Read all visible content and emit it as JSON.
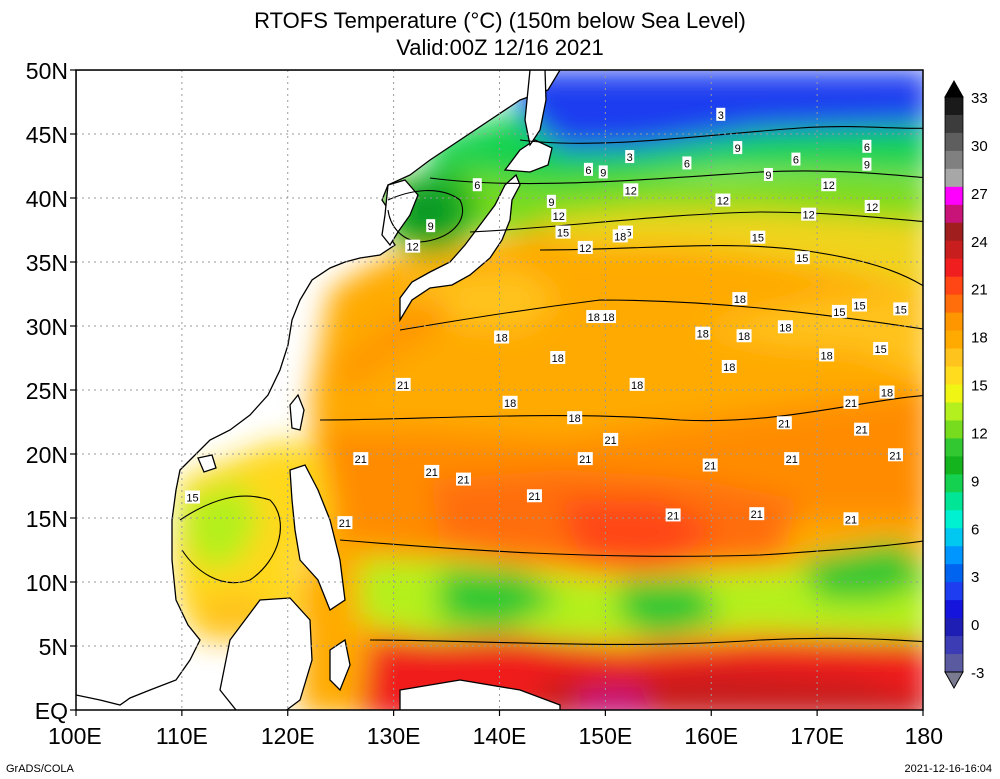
{
  "title_line1": "RTOFS Temperature (°C) (150m below Sea Level)",
  "title_line2": "Valid:00Z 12/16 2021",
  "lat_labels": [
    "50N",
    "45N",
    "40N",
    "35N",
    "30N",
    "25N",
    "20N",
    "15N",
    "10N",
    "5N",
    "EQ"
  ],
  "lon_labels": [
    "100E",
    "110E",
    "120E",
    "130E",
    "140E",
    "150E",
    "160E",
    "170E",
    "180"
  ],
  "colorbar": {
    "labels": [
      "33",
      "30",
      "27",
      "24",
      "21",
      "18",
      "15",
      "12",
      "9",
      "6",
      "3",
      "0",
      "-3"
    ],
    "colors": [
      "#1a1a1a",
      "#3c3c3c",
      "#5e5e5e",
      "#808080",
      "#a7a7a7",
      "#ff00ff",
      "#c81478",
      "#a01e1e",
      "#c81e1e",
      "#f01e1e",
      "#ff4614",
      "#ff6e0a",
      "#ff9600",
      "#ffaa00",
      "#ffc31e",
      "#ffdc1e",
      "#f0f514",
      "#b4f01e",
      "#78dc1e",
      "#32c832",
      "#14b41e",
      "#14d250",
      "#00e696",
      "#00f0d2",
      "#00c8f0",
      "#0096ff",
      "#0064f0",
      "#1e3cf0",
      "#1414dc",
      "#1e1eb4",
      "#3c3cb4",
      "#5a5aa0"
    ]
  },
  "contour_labels": [
    {
      "v": "3",
      "lon": 160.9,
      "lat": 46.5
    },
    {
      "v": "3",
      "lon": 152.3,
      "lat": 43.2
    },
    {
      "v": "6",
      "lon": 137.9,
      "lat": 41.0
    },
    {
      "v": "6",
      "lon": 148.4,
      "lat": 42.2
    },
    {
      "v": "6",
      "lon": 157.7,
      "lat": 42.7
    },
    {
      "v": "6",
      "lon": 168.0,
      "lat": 43.0
    },
    {
      "v": "6",
      "lon": 174.7,
      "lat": 44.0
    },
    {
      "v": "9",
      "lon": 149.8,
      "lat": 42.0
    },
    {
      "v": "9",
      "lon": 162.5,
      "lat": 43.9
    },
    {
      "v": "9",
      "lon": 165.4,
      "lat": 41.8
    },
    {
      "v": "9",
      "lon": 174.7,
      "lat": 42.6
    },
    {
      "v": "9",
      "lon": 144.9,
      "lat": 39.7
    },
    {
      "v": "9",
      "lon": 133.5,
      "lat": 37.8
    },
    {
      "v": "12",
      "lon": 152.4,
      "lat": 40.6
    },
    {
      "v": "12",
      "lon": 161.1,
      "lat": 39.8
    },
    {
      "v": "12",
      "lon": 171.1,
      "lat": 41.0
    },
    {
      "v": "12",
      "lon": 145.6,
      "lat": 38.6
    },
    {
      "v": "12",
      "lon": 169.2,
      "lat": 38.7
    },
    {
      "v": "12",
      "lon": 175.2,
      "lat": 39.3
    },
    {
      "v": "12",
      "lon": 148.1,
      "lat": 36.1
    },
    {
      "v": "12",
      "lon": 131.8,
      "lat": 36.2
    },
    {
      "v": "15",
      "lon": 146.0,
      "lat": 37.3
    },
    {
      "v": "15",
      "lon": 151.9,
      "lat": 37.3
    },
    {
      "v": "15",
      "lon": 164.4,
      "lat": 36.9
    },
    {
      "v": "15",
      "lon": 168.6,
      "lat": 35.3
    },
    {
      "v": "15",
      "lon": 174.0,
      "lat": 31.6
    },
    {
      "v": "15",
      "lon": 172.1,
      "lat": 31.1
    },
    {
      "v": "15",
      "lon": 177.9,
      "lat": 31.3
    },
    {
      "v": "15",
      "lon": 176.0,
      "lat": 28.2
    },
    {
      "v": "15",
      "lon": 111.0,
      "lat": 16.6
    },
    {
      "v": "18",
      "lon": 151.4,
      "lat": 37.0
    },
    {
      "v": "18",
      "lon": 148.9,
      "lat": 30.7
    },
    {
      "v": "18",
      "lon": 150.3,
      "lat": 30.7
    },
    {
      "v": "18",
      "lon": 162.7,
      "lat": 32.1
    },
    {
      "v": "18",
      "lon": 159.2,
      "lat": 29.4
    },
    {
      "v": "18",
      "lon": 167.0,
      "lat": 29.9
    },
    {
      "v": "18",
      "lon": 163.1,
      "lat": 29.2
    },
    {
      "v": "18",
      "lon": 140.2,
      "lat": 29.1
    },
    {
      "v": "18",
      "lon": 170.9,
      "lat": 27.7
    },
    {
      "v": "18",
      "lon": 145.5,
      "lat": 27.5
    },
    {
      "v": "18",
      "lon": 161.7,
      "lat": 26.8
    },
    {
      "v": "18",
      "lon": 153.0,
      "lat": 25.4
    },
    {
      "v": "18",
      "lon": 176.6,
      "lat": 24.8
    },
    {
      "v": "18",
      "lon": 141.0,
      "lat": 24.0
    },
    {
      "v": "18",
      "lon": 147.1,
      "lat": 22.8
    },
    {
      "v": "21",
      "lon": 130.9,
      "lat": 25.4
    },
    {
      "v": "21",
      "lon": 173.2,
      "lat": 24.0
    },
    {
      "v": "21",
      "lon": 166.9,
      "lat": 22.4
    },
    {
      "v": "21",
      "lon": 174.2,
      "lat": 21.9
    },
    {
      "v": "21",
      "lon": 150.5,
      "lat": 21.1
    },
    {
      "v": "21",
      "lon": 177.4,
      "lat": 19.9
    },
    {
      "v": "21",
      "lon": 126.9,
      "lat": 19.6
    },
    {
      "v": "21",
      "lon": 148.1,
      "lat": 19.6
    },
    {
      "v": "21",
      "lon": 159.9,
      "lat": 19.1
    },
    {
      "v": "21",
      "lon": 167.6,
      "lat": 19.6
    },
    {
      "v": "21",
      "lon": 133.6,
      "lat": 18.6
    },
    {
      "v": "21",
      "lon": 136.6,
      "lat": 18.0
    },
    {
      "v": "21",
      "lon": 143.3,
      "lat": 16.7
    },
    {
      "v": "21",
      "lon": 125.4,
      "lat": 14.6
    },
    {
      "v": "21",
      "lon": 156.4,
      "lat": 15.2
    },
    {
      "v": "21",
      "lon": 164.3,
      "lat": 15.3
    },
    {
      "v": "21",
      "lon": 173.2,
      "lat": 14.9
    }
  ],
  "credit": "GrADS/COLA",
  "timestamp": "2021-12-16-16:04"
}
